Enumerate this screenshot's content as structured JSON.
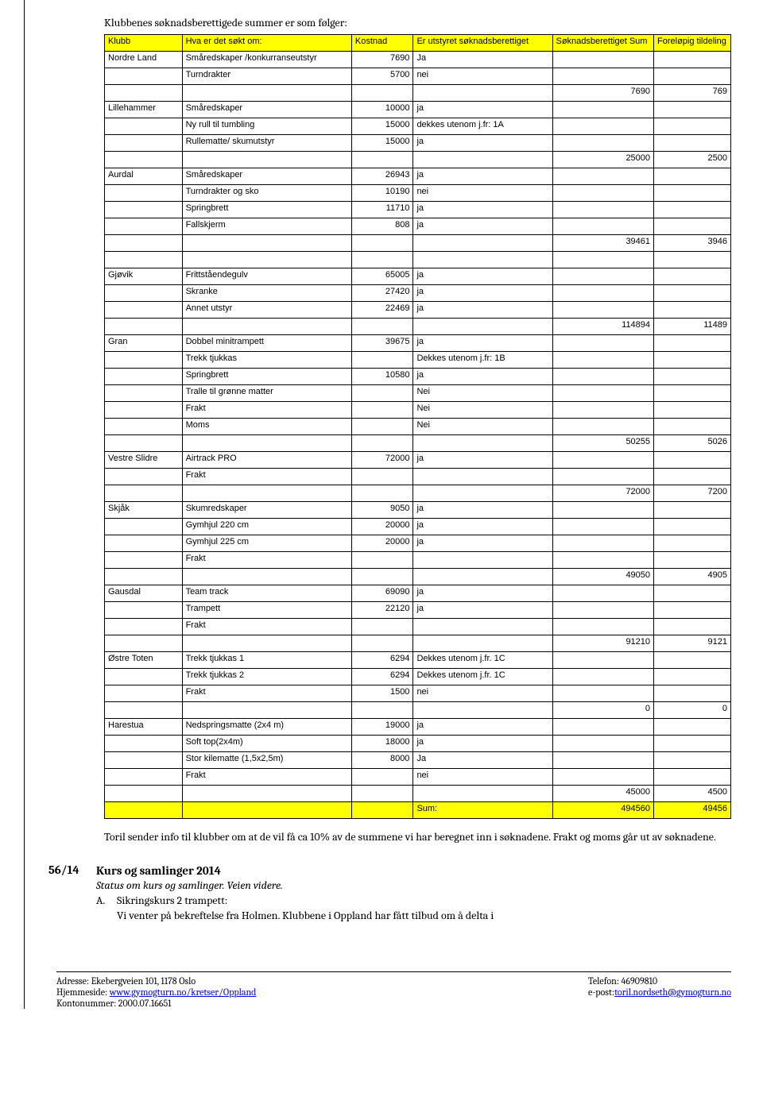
{
  "intro": "Klubbenes søknadsberettigede summer er som følger:",
  "headers": {
    "klubb": "Klubb",
    "hva": "Hva er det søkt om:",
    "kostnad": "Kostnad",
    "er": "Er utstyret søknadsberettiget",
    "sum": "Søknadsberettiget Sum",
    "tildeling": "Foreløpig tildeling"
  },
  "rows": [
    {
      "klubb": "Nordre Land",
      "hva": "Småredskaper /konkurranseutstyr",
      "kost": "7690",
      "er": "Ja",
      "sum": "",
      "tild": ""
    },
    {
      "klubb": "",
      "hva": "Turndrakter",
      "kost": "5700",
      "er": "nei",
      "sum": "",
      "tild": ""
    },
    {
      "klubb": "",
      "hva": "",
      "kost": "",
      "er": "",
      "sum": "7690",
      "tild": "769"
    },
    {
      "klubb": "Lillehammer",
      "hva": "Småredskaper",
      "kost": "10000",
      "er": "ja",
      "sum": "",
      "tild": ""
    },
    {
      "klubb": "",
      "hva": "Ny rull til tumbling",
      "kost": "15000",
      "er": "dekkes utenom j.fr: 1A",
      "sum": "",
      "tild": ""
    },
    {
      "klubb": "",
      "hva": "Rullematte/ skumutstyr",
      "kost": "15000",
      "er": "ja",
      "sum": "",
      "tild": ""
    },
    {
      "klubb": "",
      "hva": "",
      "kost": "",
      "er": "",
      "sum": "25000",
      "tild": "2500"
    },
    {
      "klubb": "Aurdal",
      "hva": "Småredskaper",
      "kost": "26943",
      "er": "ja",
      "sum": "",
      "tild": ""
    },
    {
      "klubb": "",
      "hva": "Turndrakter og sko",
      "kost": "10190",
      "er": "nei",
      "sum": "",
      "tild": ""
    },
    {
      "klubb": "",
      "hva": "Springbrett",
      "kost": "11710",
      "er": "ja",
      "sum": "",
      "tild": ""
    },
    {
      "klubb": "",
      "hva": "Fallskjerm",
      "kost": "808",
      "er": "ja",
      "sum": "",
      "tild": ""
    },
    {
      "klubb": "",
      "hva": "",
      "kost": "",
      "er": "",
      "sum": "39461",
      "tild": "3946"
    },
    {
      "blank": true
    },
    {
      "klubb": "Gjøvik",
      "hva": "Frittståendegulv",
      "kost": "65005",
      "er": "ja",
      "sum": "",
      "tild": ""
    },
    {
      "klubb": "",
      "hva": "Skranke",
      "kost": "27420",
      "er": "ja",
      "sum": "",
      "tild": ""
    },
    {
      "klubb": "",
      "hva": "Annet utstyr",
      "kost": "22469",
      "er": "ja",
      "sum": "",
      "tild": ""
    },
    {
      "klubb": "",
      "hva": "",
      "kost": "",
      "er": "",
      "sum": "114894",
      "tild": "11489"
    },
    {
      "klubb": "Gran",
      "hva": "Dobbel minitrampett",
      "kost": "39675",
      "er": "ja",
      "sum": "",
      "tild": ""
    },
    {
      "klubb": "",
      "hva": "Trekk tjukkas",
      "kost": "",
      "er": "Dekkes utenom j.fr: 1B",
      "sum": "",
      "tild": ""
    },
    {
      "klubb": "",
      "hva": "Springbrett",
      "kost": "10580",
      "er": "ja",
      "sum": "",
      "tild": ""
    },
    {
      "klubb": "",
      "hva": "Tralle til grønne matter",
      "kost": "",
      "er": "Nei",
      "sum": "",
      "tild": ""
    },
    {
      "klubb": "",
      "hva": "Frakt",
      "kost": "",
      "er": "Nei",
      "sum": "",
      "tild": ""
    },
    {
      "klubb": "",
      "hva": "Moms",
      "kost": "",
      "er": "Nei",
      "sum": "",
      "tild": ""
    },
    {
      "klubb": "",
      "hva": "",
      "kost": "",
      "er": "",
      "sum": "50255",
      "tild": "5026"
    },
    {
      "klubb": "Vestre Slidre",
      "hva": "Airtrack PRO",
      "kost": "72000",
      "er": "ja",
      "sum": "",
      "tild": ""
    },
    {
      "klubb": "",
      "hva": "Frakt",
      "kost": "",
      "er": "",
      "sum": "",
      "tild": ""
    },
    {
      "klubb": "",
      "hva": "",
      "kost": "",
      "er": "",
      "sum": "72000",
      "tild": "7200"
    },
    {
      "klubb": "Skjåk",
      "hva": "Skumredskaper",
      "kost": "9050",
      "er": "ja",
      "sum": "",
      "tild": ""
    },
    {
      "klubb": "",
      "hva": "Gymhjul 220 cm",
      "kost": "20000",
      "er": "ja",
      "sum": "",
      "tild": ""
    },
    {
      "klubb": "",
      "hva": "Gymhjul 225 cm",
      "kost": "20000",
      "er": "ja",
      "sum": "",
      "tild": ""
    },
    {
      "klubb": "",
      "hva": "Frakt",
      "kost": "",
      "er": "",
      "sum": "",
      "tild": ""
    },
    {
      "klubb": "",
      "hva": "",
      "kost": "",
      "er": "",
      "sum": "49050",
      "tild": "4905"
    },
    {
      "klubb": "Gausdal",
      "hva": "Team track",
      "kost": "69090",
      "er": "ja",
      "sum": "",
      "tild": ""
    },
    {
      "klubb": "",
      "hva": "Trampett",
      "kost": "22120",
      "er": "ja",
      "sum": "",
      "tild": ""
    },
    {
      "klubb": "",
      "hva": "Frakt",
      "kost": "",
      "er": "",
      "sum": "",
      "tild": ""
    },
    {
      "klubb": "",
      "hva": "",
      "kost": "",
      "er": "",
      "sum": "91210",
      "tild": "9121"
    },
    {
      "klubb": "Østre Toten",
      "hva": "Trekk tjukkas 1",
      "kost": "6294",
      "er": "Dekkes utenom j.fr. 1C",
      "sum": "",
      "tild": ""
    },
    {
      "klubb": "",
      "hva": "Trekk tjukkas 2",
      "kost": "6294",
      "er": "Dekkes utenom j.fr. 1C",
      "sum": "",
      "tild": ""
    },
    {
      "klubb": "",
      "hva": "Frakt",
      "kost": "1500",
      "er": "nei",
      "sum": "",
      "tild": ""
    },
    {
      "klubb": "",
      "hva": "",
      "kost": "",
      "er": "",
      "sum": "0",
      "tild": "0"
    },
    {
      "klubb": "Harestua",
      "hva": "Nedspringsmatte (2x4 m)",
      "kost": "19000",
      "er": "ja",
      "sum": "",
      "tild": ""
    },
    {
      "klubb": "",
      "hva": "Soft top(2x4m)",
      "kost": "18000",
      "er": "ja",
      "sum": "",
      "tild": ""
    },
    {
      "klubb": "",
      "hva": "Stor kilematte (1,5x2,5m)",
      "kost": "8000",
      "er": "Ja",
      "sum": "",
      "tild": ""
    },
    {
      "klubb": "",
      "hva": "Frakt",
      "kost": "",
      "er": "nei",
      "sum": "",
      "tild": ""
    },
    {
      "klubb": "",
      "hva": "",
      "kost": "",
      "er": "",
      "sum": "45000",
      "tild": "4500"
    },
    {
      "klubb": "",
      "hva": "",
      "kost": "",
      "er": "Sum:",
      "sum": "494560",
      "tild": "49456",
      "yellow": true
    }
  ],
  "closing": "Toril sender info til klubber om at de vil få ca 10% av de summene vi har beregnet inn i søknadene. Frakt og moms går ut av søknadene.",
  "section": {
    "num": "56/14",
    "title": "Kurs og samlinger 2014",
    "sub": "Status om kurs og samlinger. Veien videre.",
    "itemA_label": "A.",
    "itemA_title": "Sikringskurs 2 trampett:",
    "itemA_body": "Vi venter på bekreftelse fra Holmen. Klubbene i Oppland har fått tilbud om å delta i"
  },
  "footer": {
    "l1": "Adresse: Ekebergveien 101, 1178 Oslo",
    "l2a": "Hjemmeside: ",
    "l2b": "www.gymogturn.no/kretser/Oppland",
    "l3": "Kontonummer: 2000.07.16651",
    "r1": "Telefon: 46909810",
    "r2a": "e-post:",
    "r2b": "toril.nordseth@gymogturn.no"
  }
}
